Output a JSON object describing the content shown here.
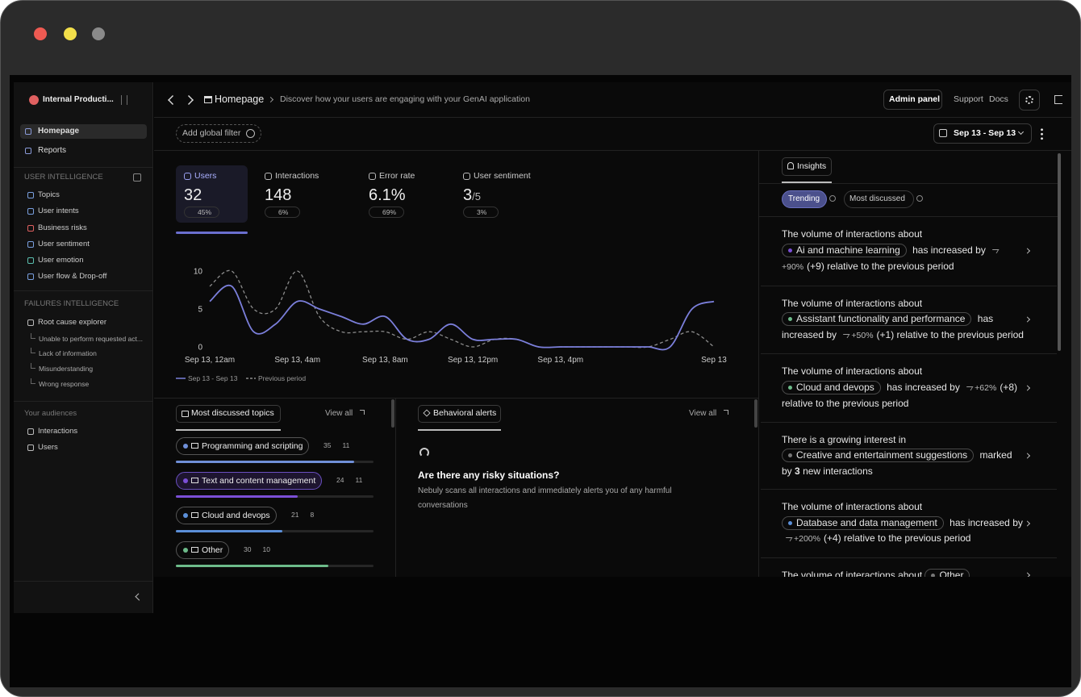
{
  "sidebar": {
    "workspace": "Internal Producti...",
    "nav": [
      "Homepage",
      "Reports"
    ],
    "sections": [
      {
        "title": "USER INTELLIGENCE",
        "items": [
          "Topics",
          "User intents",
          "Business risks",
          "User sentiment",
          "User emotion",
          "User flow & Drop-off"
        ]
      },
      {
        "title": "FAILURES INTELLIGENCE",
        "items": [
          "Root cause explorer"
        ],
        "subitems": [
          "Unable to perform requested act...",
          "Lack of information",
          "Misunderstanding",
          "Wrong response"
        ]
      },
      {
        "title": "Your audiences",
        "items": [
          "Interactions",
          "Users"
        ]
      }
    ]
  },
  "header": {
    "breadcrumb": "Homepage",
    "description": "Discover how your users are engaging with your GenAI application",
    "admin": "Admin panel",
    "links": [
      "Support",
      "Docs"
    ],
    "filter": "Add global filter",
    "date_range": "Sep 13 - Sep 13"
  },
  "kpis": [
    {
      "label": "Users",
      "value": "32",
      "change": "45%"
    },
    {
      "label": "Interactions",
      "value": "148",
      "change": "6%"
    },
    {
      "label": "Error rate",
      "value": "6.1%",
      "change": "69%"
    },
    {
      "label": "User sentiment",
      "value": "3",
      "suffix": "/5",
      "change": "3%"
    }
  ],
  "chart_data": {
    "type": "line",
    "categories": [
      "Sep 13, 12am",
      null,
      null,
      null,
      "Sep 13, 4am",
      null,
      null,
      null,
      "Sep 13, 8am",
      null,
      null,
      null,
      "Sep 13, 12pm",
      null,
      null,
      null,
      "Sep 13, 4pm",
      null,
      null,
      null,
      null,
      null,
      null,
      "Sep 13"
    ],
    "series": [
      {
        "name": "Sep 13 - Sep 13",
        "color": "#7b7fdb",
        "values": [
          6,
          8,
          2,
          3,
          6,
          5,
          4,
          3,
          4,
          1,
          1,
          3,
          1,
          1,
          1,
          0,
          0,
          0,
          0,
          0,
          0,
          0,
          5,
          6
        ]
      },
      {
        "name": "Previous period",
        "color": "#8c8c8c",
        "dashed": true,
        "values": [
          8,
          10,
          5,
          5,
          10,
          4,
          2,
          2,
          2,
          1,
          2,
          1,
          0,
          1,
          1,
          0,
          0,
          0,
          0,
          0,
          0,
          1,
          2,
          0
        ]
      }
    ],
    "ylim": [
      0,
      10
    ],
    "yticks": [
      0,
      5,
      10
    ]
  },
  "topics": {
    "title": "Most discussed topics",
    "view_all": "View all",
    "items": [
      {
        "name": "Programming and scripting",
        "interactions": 35,
        "users": 11,
        "color": "#6f8fd8"
      },
      {
        "name": "Text and content management",
        "interactions": 24,
        "users": 11,
        "color": "#7b4fd6"
      },
      {
        "name": "Cloud and devops",
        "interactions": 21,
        "users": 8,
        "color": "#5b8fd8"
      },
      {
        "name": "Other",
        "interactions": 30,
        "users": 10,
        "color": "#6dbb8a"
      }
    ]
  },
  "alerts": {
    "title": "Behavioral alerts",
    "view_all": "View all",
    "question": "Are there any risky situations?",
    "description": "Nebuly scans all interactions and immediately alerts you of any harmful conversations"
  },
  "insights": {
    "tab": "Insights",
    "filters": [
      "Trending",
      "Most discussed"
    ],
    "cards": [
      {
        "lead": "The volume of interactions about",
        "topic": "Ai and machine learning",
        "verb": "has increased by",
        "change": "+90%",
        "rest": "(+9) relative to the previous period"
      },
      {
        "lead": "The volume of interactions about",
        "topic": "Assistant functionality and performance",
        "verb": "has increased by",
        "change": "+50%",
        "rest": "(+1) relative to the previous period"
      },
      {
        "lead": "The volume of interactions about",
        "topic": "Cloud and devops",
        "verb": "has increased by",
        "change": "+62%",
        "rest": "(+8) relative to the previous period"
      },
      {
        "lead": "There is a growing interest in",
        "topic": "Creative and entertainment suggestions",
        "verb": "marked by",
        "strong": "3",
        "rest": "new interactions"
      },
      {
        "lead": "The volume of interactions about",
        "topic": "Database and data management",
        "verb": "has increased by",
        "change": "+200%",
        "rest": "(+4) relative to the previous period"
      },
      {
        "lead": "The volume of interactions about",
        "topic": "Other"
      }
    ]
  }
}
